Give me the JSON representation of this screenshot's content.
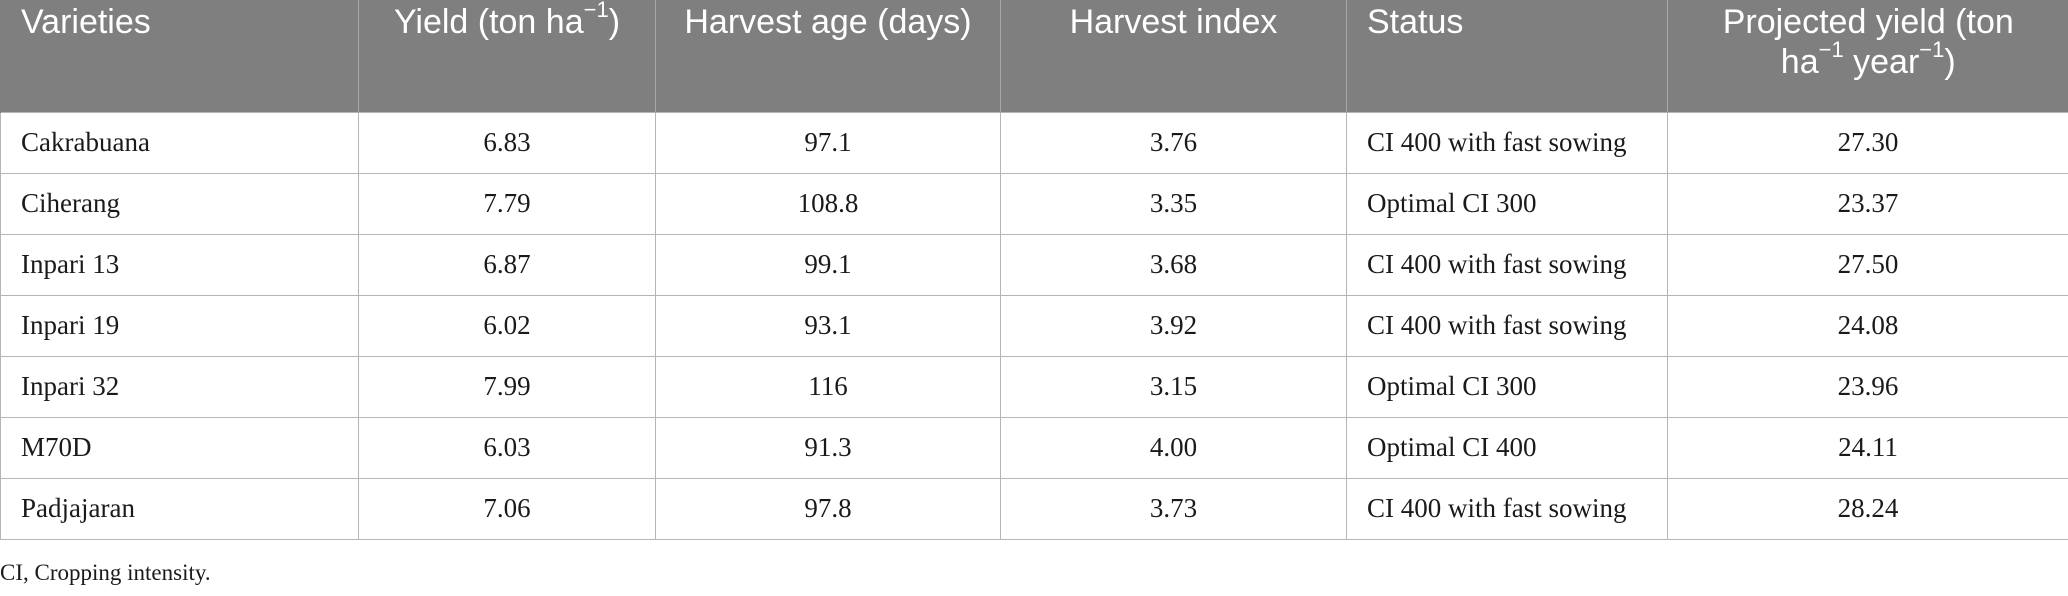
{
  "table": {
    "headers": {
      "varieties": "Varieties",
      "yield": "Yield (ton ha",
      "yield_sup": "−1",
      "yield_close": ")",
      "harvest_age": "Harvest age (days)",
      "harvest_index": "Harvest index",
      "status": "Status",
      "projected_a": "Projected yield (ton ha",
      "projected_sup1": "−1",
      "projected_b": " year",
      "projected_sup2": "−1",
      "projected_close": ")"
    },
    "rows": [
      {
        "variety": "Cakrabuana",
        "yield": "6.83",
        "harvest_age": "97.1",
        "harvest_index": "3.76",
        "status": "CI 400 with fast sowing",
        "projected_yield": "27.30"
      },
      {
        "variety": "Ciherang",
        "yield": "7.79",
        "harvest_age": "108.8",
        "harvest_index": "3.35",
        "status": "Optimal CI 300",
        "projected_yield": "23.37"
      },
      {
        "variety": "Inpari 13",
        "yield": "6.87",
        "harvest_age": "99.1",
        "harvest_index": "3.68",
        "status": "CI 400 with fast sowing",
        "projected_yield": "27.50"
      },
      {
        "variety": "Inpari 19",
        "yield": "6.02",
        "harvest_age": "93.1",
        "harvest_index": "3.92",
        "status": "CI 400 with fast sowing",
        "projected_yield": "24.08"
      },
      {
        "variety": "Inpari 32",
        "yield": "7.99",
        "harvest_age": "116",
        "harvest_index": "3.15",
        "status": "Optimal CI 300",
        "projected_yield": "23.96"
      },
      {
        "variety": "M70D",
        "yield": "6.03",
        "harvest_age": "91.3",
        "harvest_index": "4.00",
        "status": "Optimal CI 400",
        "projected_yield": "24.11"
      },
      {
        "variety": "Padjajaran",
        "yield": "7.06",
        "harvest_age": "97.8",
        "harvest_index": "3.73",
        "status": "CI 400 with fast sowing",
        "projected_yield": "28.24"
      }
    ]
  },
  "footnote": "CI, Cropping intensity.",
  "colors": {
    "header_background": "#7f7f7f",
    "header_text": "#ffffff",
    "grid_line": "#b5b5b5"
  }
}
